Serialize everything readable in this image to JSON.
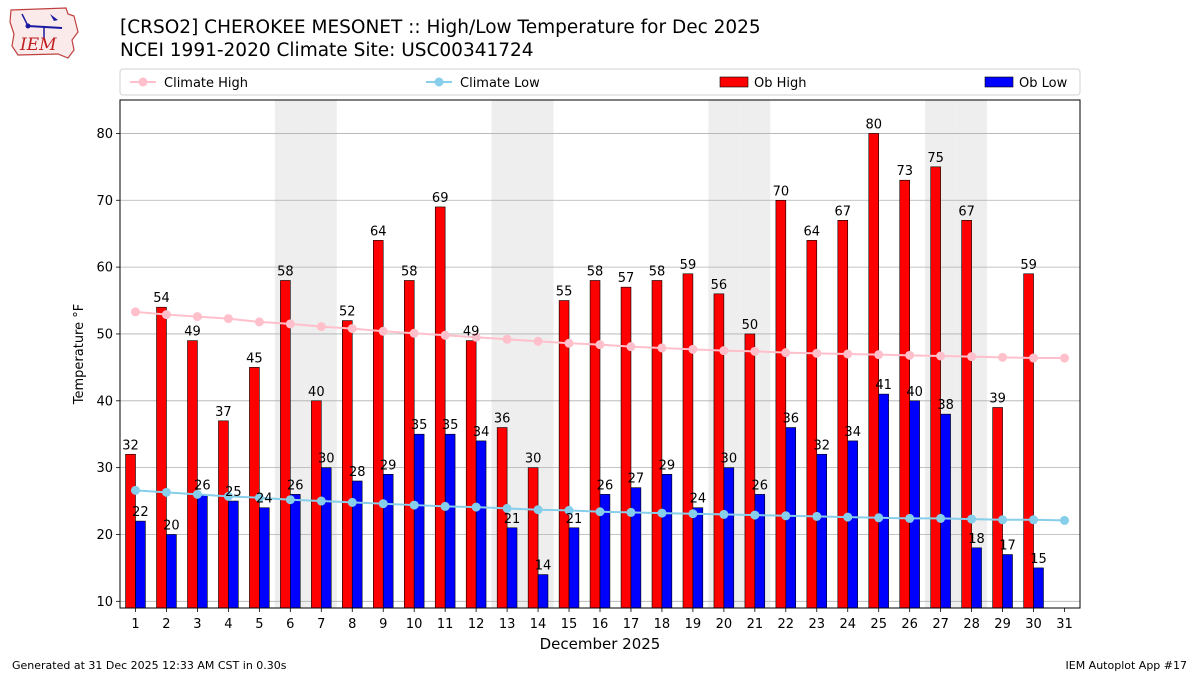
{
  "header": {
    "logo_text": "IEM",
    "title_line1": "[CRSO2] CHEROKEE MESONET :: High/Low Temperature for Dec 2025",
    "title_line2": "NCEI 1991-2020 Climate Site: USC00341724"
  },
  "footer": {
    "generated": "Generated at 31 Dec 2025 12:33 AM CST in 0.30s",
    "app": "IEM Autoplot App #17"
  },
  "chart_data": {
    "type": "bar",
    "xlabel": "December 2025",
    "ylabel": "Temperature °F",
    "ylim": [
      9,
      85
    ],
    "yticks": [
      10,
      20,
      30,
      40,
      50,
      60,
      70,
      80
    ],
    "grid": "horizontal",
    "legend_placement": "top",
    "weekend_shading_days": [
      6,
      7,
      13,
      14,
      20,
      21,
      27,
      28
    ],
    "categories": [
      1,
      2,
      3,
      4,
      5,
      6,
      7,
      8,
      9,
      10,
      11,
      12,
      13,
      14,
      15,
      16,
      17,
      18,
      19,
      20,
      21,
      22,
      23,
      24,
      25,
      26,
      27,
      28,
      29,
      30,
      31
    ],
    "series": [
      {
        "name": "Climate High",
        "kind": "line",
        "color": "#ffc0cb",
        "values": [
          53.3,
          52.9,
          52.6,
          52.3,
          51.8,
          51.5,
          51.1,
          50.8,
          50.4,
          50.1,
          49.8,
          49.5,
          49.2,
          48.9,
          48.6,
          48.4,
          48.1,
          47.9,
          47.7,
          47.5,
          47.4,
          47.2,
          47.1,
          47.0,
          46.9,
          46.8,
          46.7,
          46.6,
          46.5,
          46.4,
          46.4
        ]
      },
      {
        "name": "Climate Low",
        "kind": "line",
        "color": "#87ceeb",
        "values": [
          26.6,
          26.3,
          26.0,
          25.7,
          25.5,
          25.2,
          25.0,
          24.8,
          24.6,
          24.4,
          24.2,
          24.1,
          23.9,
          23.7,
          23.6,
          23.4,
          23.3,
          23.2,
          23.1,
          23.0,
          22.9,
          22.8,
          22.7,
          22.6,
          22.5,
          22.4,
          22.4,
          22.3,
          22.2,
          22.2,
          22.1
        ]
      },
      {
        "name": "Ob High",
        "kind": "bar",
        "color": "#ff0000",
        "values": [
          32,
          54,
          49,
          37,
          45,
          58,
          40,
          52,
          64,
          58,
          69,
          49,
          36,
          30,
          55,
          58,
          57,
          58,
          59,
          56,
          50,
          70,
          64,
          67,
          80,
          73,
          75,
          67,
          39,
          59,
          null
        ]
      },
      {
        "name": "Ob Low",
        "kind": "bar",
        "color": "#0000ff",
        "values": [
          22,
          20,
          26,
          25,
          24,
          26,
          30,
          28,
          29,
          35,
          35,
          34,
          21,
          14,
          21,
          26,
          27,
          29,
          24,
          30,
          26,
          36,
          32,
          34,
          41,
          40,
          38,
          18,
          17,
          15,
          null
        ]
      }
    ]
  }
}
